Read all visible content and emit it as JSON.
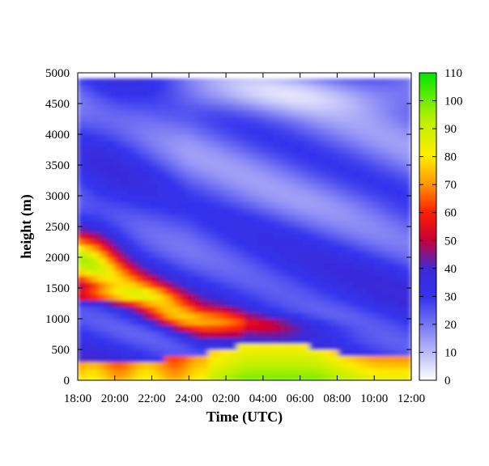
{
  "chart_data": {
    "type": "heatmap",
    "xlabel": "Time (UTC)",
    "ylabel": "height (m)",
    "x_ticks": [
      "18:00",
      "20:00",
      "22:00",
      "24:00",
      "02:00",
      "04:00",
      "06:00",
      "08:00",
      "10:00",
      "12:00"
    ],
    "x_range_hours": [
      0,
      18
    ],
    "y_ticks": [
      0,
      500,
      1000,
      1500,
      2000,
      2500,
      3000,
      3500,
      4000,
      4500,
      5000
    ],
    "ylim": [
      0,
      5000
    ],
    "colorbar": {
      "ticks": [
        0,
        10,
        20,
        30,
        40,
        50,
        60,
        70,
        80,
        90,
        100,
        110
      ],
      "range": [
        0,
        110
      ],
      "colors": [
        "#ffffff",
        "#3333ee",
        "#ff0000",
        "#ffff00",
        "#00ee00"
      ]
    },
    "grid": false
  }
}
